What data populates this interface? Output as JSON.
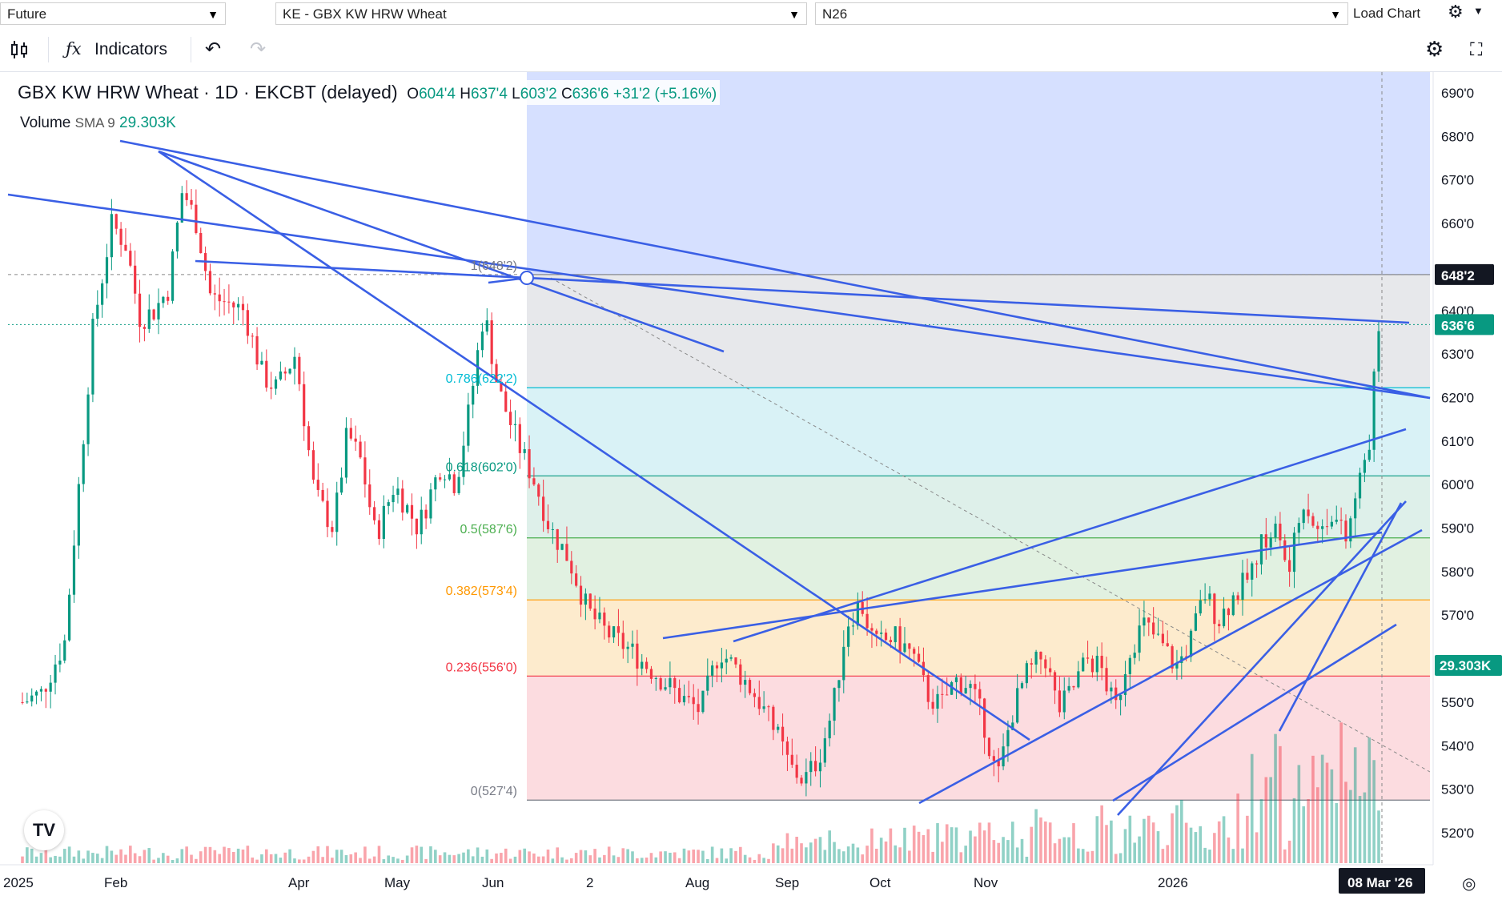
{
  "topbar": {
    "type_value": "Future",
    "symbol_value": "KE - GBX KW HRW Wheat",
    "contract_value": "N26",
    "load_chart_label": "Load Chart"
  },
  "toolbar": {
    "indicators_label": "Indicators"
  },
  "legend": {
    "title": "GBX KW HRW Wheat · 1D · EKCBT (delayed)",
    "open_label": "O",
    "open": "604'4",
    "high_label": "H",
    "high": "637'4",
    "low_label": "L",
    "low": "603'2",
    "close_label": "C",
    "close": "636'6",
    "change": "+31'2 (+5.16%)",
    "volume_label": "Volume",
    "sma_label": "SMA 9",
    "volume_value": "29.303K"
  },
  "price_axis": {
    "ticks": [
      "690'0",
      "680'0",
      "670'0",
      "660'0",
      "640'0",
      "630'0",
      "620'0",
      "610'0",
      "600'0",
      "590'0",
      "580'0",
      "570'0",
      "550'0",
      "540'0",
      "530'0",
      "520'0"
    ],
    "current_price_label": "636'6",
    "fib_high_label": "648'2",
    "volume_label": "29.303K"
  },
  "time_axis": {
    "labels": [
      "2025",
      "Feb",
      "Apr",
      "May",
      "Jun",
      "2",
      "Aug",
      "Sep",
      "Oct",
      "Nov",
      "2026"
    ],
    "crosshair_date": "08 Mar '26"
  },
  "fib": {
    "levels": [
      {
        "label": "1(648'2)",
        "price": 648.25,
        "color": "#787b86"
      },
      {
        "label": "0.786(622'2)",
        "price": 622.25,
        "color": "#00bcd4"
      },
      {
        "label": "0.618(602'0)",
        "price": 602.0,
        "color": "#089981"
      },
      {
        "label": "0.5(587'6)",
        "price": 587.75,
        "color": "#4caf50"
      },
      {
        "label": "0.382(573'4)",
        "price": 573.5,
        "color": "#ff9800"
      },
      {
        "label": "0.236(556'0)",
        "price": 556.0,
        "color": "#f23645"
      },
      {
        "label": "0(527'4)",
        "price": 527.5,
        "color": "#787b86"
      }
    ]
  },
  "colors": {
    "up": "#089981",
    "down": "#f23645",
    "trendline": "#3a5fe5"
  }
}
